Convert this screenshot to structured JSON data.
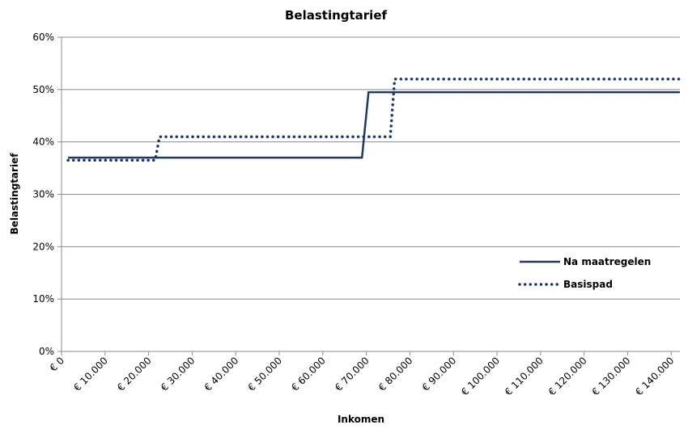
{
  "chart_data": {
    "type": "line",
    "title": "Belastingtarief",
    "xlabel": "Inkomen",
    "ylabel": "Belastingtarief",
    "xlim": [
      0,
      142000
    ],
    "ylim": [
      0,
      60
    ],
    "x_ticks": [
      0,
      10000,
      20000,
      30000,
      40000,
      50000,
      60000,
      70000,
      80000,
      90000,
      100000,
      110000,
      120000,
      130000,
      140000
    ],
    "x_tick_labels": [
      "€ 0",
      "€ 10.000",
      "€ 20.000",
      "€ 30.000",
      "€ 40.000",
      "€ 50.000",
      "€ 60.000",
      "€ 70.000",
      "€ 80.000",
      "€ 90.000",
      "€ 100.000",
      "€ 110.000",
      "€ 120.000",
      "€ 130.000",
      "€ 140.000"
    ],
    "y_ticks": [
      0,
      10,
      20,
      30,
      40,
      50,
      60
    ],
    "y_tick_labels": [
      "0%",
      "10%",
      "20%",
      "30%",
      "40%",
      "50%",
      "60%"
    ],
    "grid": "horizontal",
    "legend_position": "right",
    "series": [
      {
        "name": "Na maatregelen",
        "style": "solid",
        "color": "#1f3864",
        "x": [
          1500,
          69000,
          70500,
          142000
        ],
        "y": [
          37,
          37,
          49.5,
          49.5
        ]
      },
      {
        "name": "Basispad",
        "style": "dotted",
        "color": "#1f3864",
        "x": [
          1500,
          21500,
          22500,
          75500,
          76500,
          142000
        ],
        "y": [
          36.5,
          36.5,
          41,
          41,
          52,
          52
        ]
      }
    ]
  }
}
